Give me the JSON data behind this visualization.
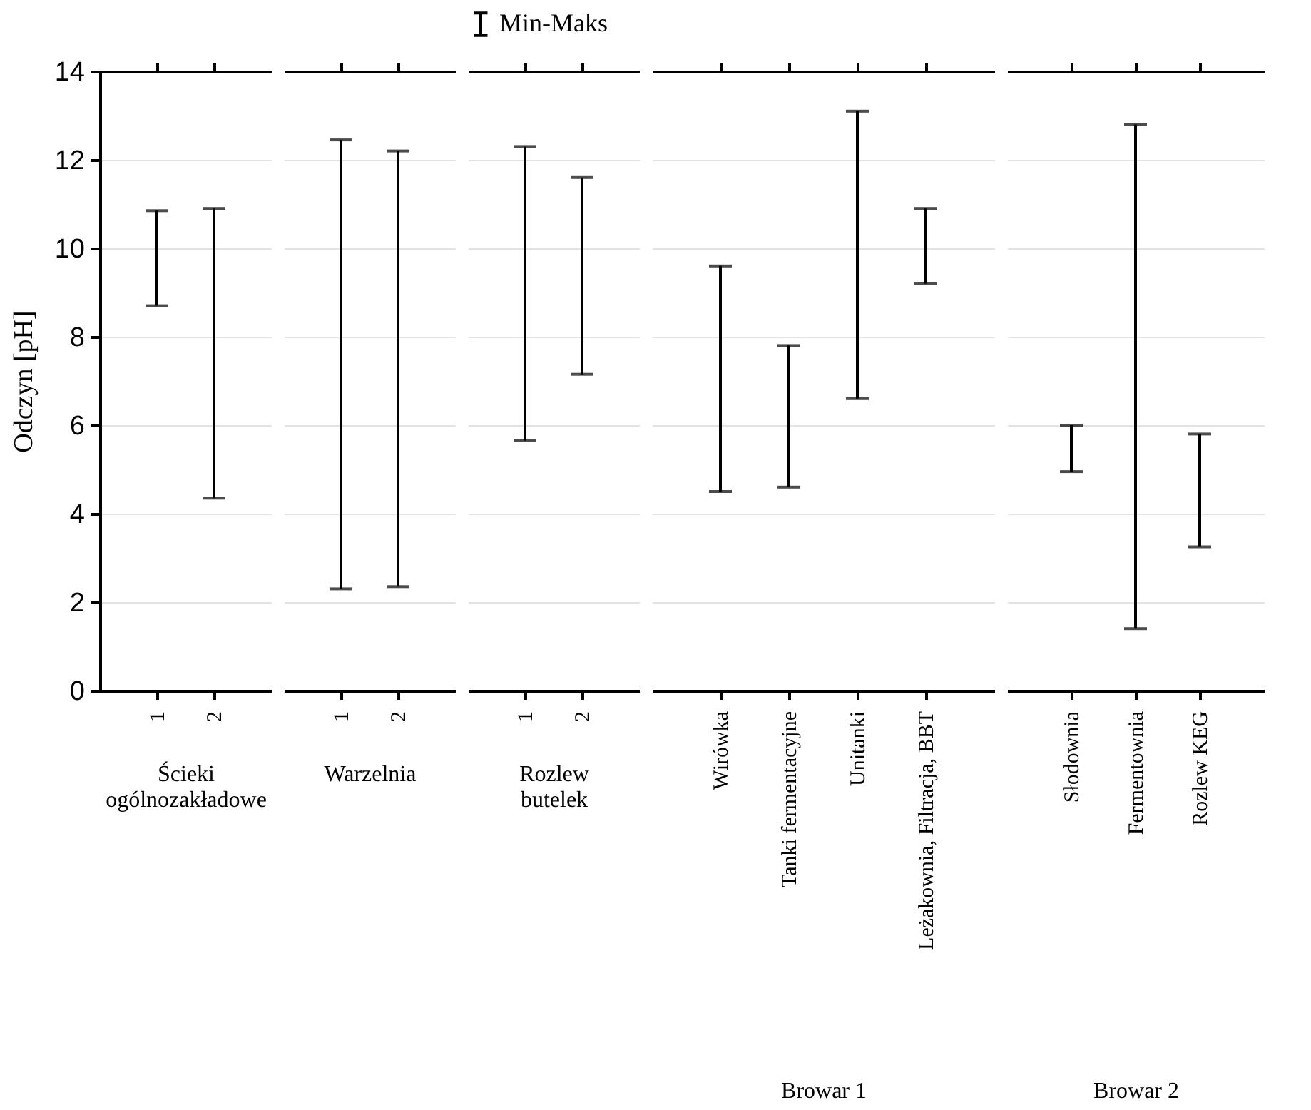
{
  "chart_data": [
    {
      "type": "bar",
      "categories": [
        "1",
        "2"
      ],
      "xlabel": "Ścieki ogólnozakładowe",
      "ylabel": "Odczyn [pH]",
      "ylim": [
        0,
        14
      ],
      "yticks": [
        0,
        2,
        4,
        6,
        8,
        10,
        12,
        14
      ],
      "grid": "y",
      "color": "#000000",
      "base": [
        8.7,
        4.35
      ],
      "values": [
        2.15,
        6.55
      ]
    },
    {
      "type": "bar",
      "categories": [
        "1",
        "2"
      ],
      "xlabel": "Warzelnia",
      "ylim": [
        0,
        14
      ],
      "yticks": [
        0,
        2,
        4,
        6,
        8,
        10,
        12,
        14
      ],
      "grid": "y",
      "tick_labels": "x",
      "color": "#000000",
      "base": [
        2.3,
        2.35
      ],
      "values": [
        10.15,
        9.85
      ]
    },
    {
      "type": "bar",
      "categories": [
        "1",
        "2"
      ],
      "xlabel": "Rozlew butelek",
      "ylim": [
        0,
        14
      ],
      "yticks": [
        0,
        2,
        4,
        6,
        8,
        10,
        12,
        14
      ],
      "grid": "y",
      "tick_labels": "x",
      "legend": "top",
      "series": [
        {
          "name": "Min-Maks",
          "color": "#000000",
          "base": [
            5.65,
            7.15
          ],
          "values": [
            6.65,
            4.45
          ]
        }
      ]
    },
    {
      "type": "bar",
      "categories": [
        "Wirówka",
        "Tanki fermentacyjne",
        "Unitanki",
        "Leżakownia, Filtracja, BBT"
      ],
      "xlabel": "Browar 1",
      "ylim": [
        0,
        14
      ],
      "yticks": [
        0,
        2,
        4,
        6,
        8,
        10,
        12,
        14
      ],
      "grid": "y",
      "tick_labels": "x",
      "color": "#000000",
      "base": [
        4.5,
        4.6,
        6.6,
        9.2
      ],
      "values": [
        5.1,
        3.2,
        6.5,
        1.7
      ]
    },
    {
      "type": "bar",
      "categories": [
        "Słodownia",
        "Fermentownia",
        "Rozlew KEG"
      ],
      "xlabel": "Browar 2",
      "ylim": [
        0,
        14
      ],
      "yticks": [
        0,
        2,
        4,
        6,
        8,
        10,
        12,
        14
      ],
      "grid": "y",
      "tick_labels": "x",
      "color": "#000000",
      "base": [
        4.95,
        1.4,
        3.25
      ],
      "values": [
        1.05,
        11.4,
        2.55
      ]
    }
  ]
}
